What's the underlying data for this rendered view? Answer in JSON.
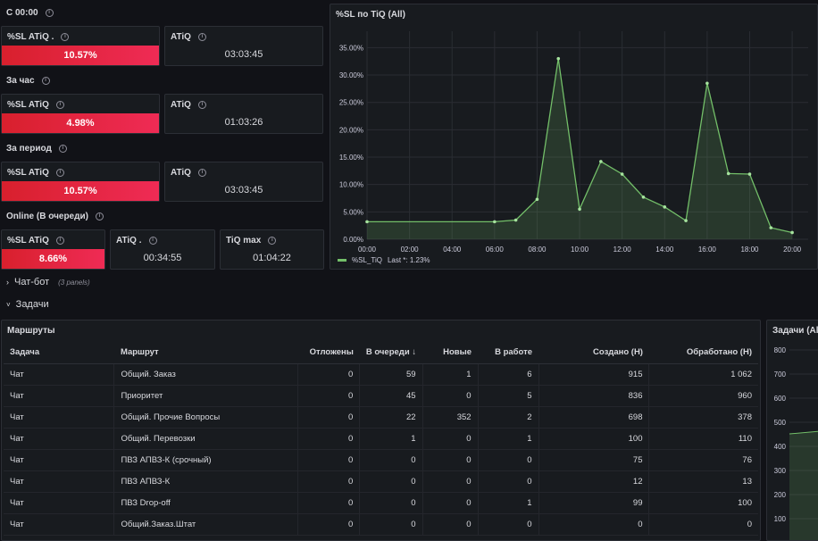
{
  "rows": {
    "since_midnight": "С 00:00",
    "per_hour": "За час",
    "per_period": "За период",
    "online": "Online (В очереди)"
  },
  "stats": {
    "r1": {
      "sl_title": "%SL ATiQ .",
      "sl_value": "10.57%",
      "atiq_title": "ATiQ",
      "atiq_value": "03:03:45"
    },
    "r2": {
      "sl_title": "%SL ATiQ",
      "sl_value": "4.98%",
      "atiq_title": "ATiQ",
      "atiq_value": "01:03:26"
    },
    "r3": {
      "sl_title": "%SL ATiQ",
      "sl_value": "10.57%",
      "atiq_title": "ATiQ",
      "atiq_value": "03:03:45"
    },
    "r4": {
      "sl_title": "%SL ATiQ",
      "sl_value": "8.66%",
      "atiq_title": "ATiQ .",
      "atiq_value": "00:34:55",
      "tiq_title": "TiQ max",
      "tiq_value": "01:04:22"
    }
  },
  "colors": {
    "red_bar": "#e0253a",
    "line": "#73bf69",
    "panel_bg": "#181b1f",
    "page_bg": "#111217"
  },
  "chart_panel": {
    "title": "%SL по TiQ (All)",
    "legend_label": "%SL_TiQ",
    "legend_last": "Last *: 1.23%"
  },
  "chart_data": {
    "type": "area",
    "title": "%SL по TiQ (All)",
    "x": [
      "00:00",
      "06:00",
      "07:00",
      "08:00",
      "09:00",
      "10:00",
      "11:00",
      "12:00",
      "13:00",
      "14:00",
      "15:00",
      "16:00",
      "17:00",
      "18:00",
      "19:00",
      "20:00"
    ],
    "series": [
      {
        "name": "%SL_TiQ",
        "values": [
          3.2,
          3.2,
          3.5,
          7.3,
          33.0,
          5.5,
          14.2,
          11.9,
          7.7,
          5.9,
          3.4,
          28.5,
          12.0,
          11.9,
          2.1,
          1.23
        ]
      }
    ],
    "x_ticks": [
      "00:00",
      "02:00",
      "04:00",
      "06:00",
      "08:00",
      "10:00",
      "12:00",
      "14:00",
      "16:00",
      "18:00",
      "20:00"
    ],
    "y_ticks": [
      "0.00%",
      "5.00%",
      "10.00%",
      "15.00%",
      "20.00%",
      "25.00%",
      "30.00%",
      "35.00%"
    ],
    "ylim": [
      0,
      38
    ],
    "xlim": [
      "00:00",
      "20:30"
    ],
    "grid": true,
    "legend": "bottom-left"
  },
  "collapsed_rows": {
    "chat_bot": "Чат-бот",
    "chat_bot_sub": "(3 panels)",
    "tasks": "Задачи"
  },
  "routes_table": {
    "title": "Маршруты",
    "headers": [
      "Задача",
      "Маршрут",
      "Отложены",
      "В очереди",
      "Новые",
      "В работе",
      "Создано (Н)",
      "Обработано (Н)"
    ],
    "sort_indicator": "↓",
    "rows": [
      [
        "Чат",
        "Общий. Заказ",
        "0",
        "59",
        "1",
        "6",
        "915",
        "1 062"
      ],
      [
        "Чат",
        "Приоритет",
        "0",
        "45",
        "0",
        "5",
        "836",
        "960"
      ],
      [
        "Чат",
        "Общий. Прочие Вопросы",
        "0",
        "22",
        "352",
        "2",
        "698",
        "378"
      ],
      [
        "Чат",
        "Общий. Перевозки",
        "0",
        "1",
        "0",
        "1",
        "100",
        "110"
      ],
      [
        "Чат",
        "ПВЗ АПВЗ-К (срочный)",
        "0",
        "0",
        "0",
        "0",
        "75",
        "76"
      ],
      [
        "Чат",
        "ПВЗ АПВЗ-К",
        "0",
        "0",
        "0",
        "0",
        "12",
        "13"
      ],
      [
        "Чат",
        "ПВЗ Drop-off",
        "0",
        "0",
        "0",
        "1",
        "99",
        "100"
      ],
      [
        "Чат",
        "Общий.Заказ.Штат",
        "0",
        "0",
        "0",
        "0",
        "0",
        "0"
      ]
    ]
  },
  "right_panel": {
    "title": "Задачи (All",
    "y_ticks": [
      "800",
      "700",
      "600",
      "500",
      "400",
      "300",
      "200",
      "100"
    ]
  }
}
